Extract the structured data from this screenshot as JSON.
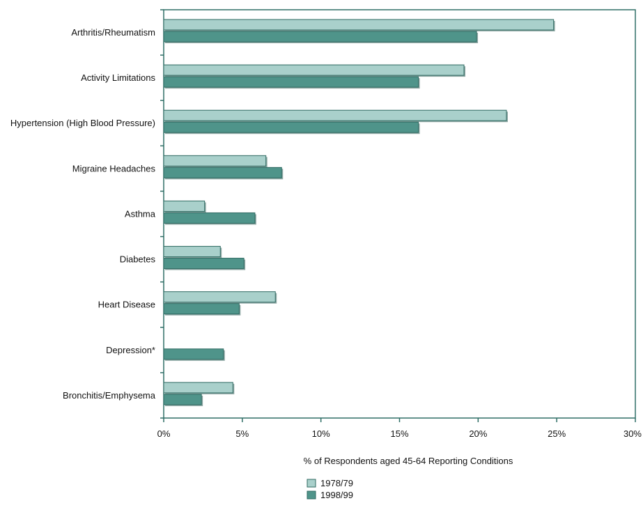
{
  "chart_data": {
    "type": "bar",
    "orientation": "horizontal",
    "categories": [
      "Arthritis/Rheumatism",
      "Activity Limitations",
      "Hypertension (High Blood Pressure)",
      "Migraine Headaches",
      "Asthma",
      "Diabetes",
      "Heart Disease",
      "Depression*",
      "Bronchitis/Emphysema"
    ],
    "series": [
      {
        "name": "1978/79",
        "color": "#a9d0cb",
        "values": [
          24.8,
          19.1,
          21.8,
          6.5,
          2.6,
          3.6,
          7.1,
          null,
          4.4
        ]
      },
      {
        "name": "1998/99",
        "color": "#4f948a",
        "values": [
          19.9,
          16.2,
          16.2,
          7.5,
          5.8,
          5.1,
          4.8,
          3.8,
          2.4
        ]
      }
    ],
    "xlabel": "% of Respondents aged 45-64 Reporting Conditions",
    "ylabel": "",
    "xlim": [
      0,
      30
    ],
    "x_ticks": [
      "0%",
      "5%",
      "10%",
      "15%",
      "20%",
      "25%",
      "30%"
    ],
    "grid": false,
    "legend_position": "bottom-center",
    "frame_color": "#2e6e66"
  }
}
